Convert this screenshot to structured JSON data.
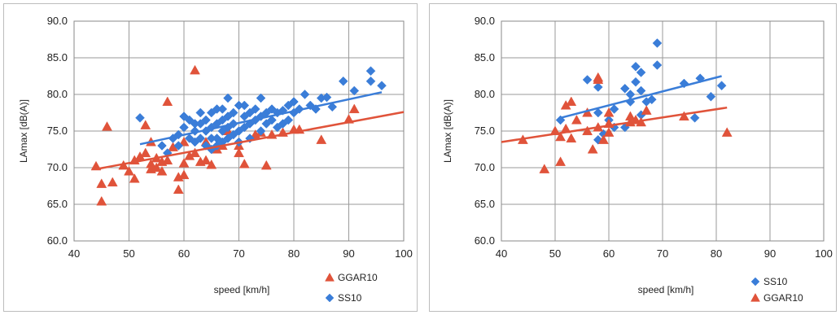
{
  "chart_data": [
    {
      "type": "scatter",
      "xlabel": "speed [km/h]",
      "ylabel": "LAmax [dB(A)]",
      "xlim": [
        40,
        100
      ],
      "ylim": [
        60,
        90
      ],
      "xticks": [
        "40",
        "50",
        "60",
        "70",
        "80",
        "90",
        "100"
      ],
      "yticks": [
        "60.0",
        "65.0",
        "70.0",
        "75.0",
        "80.0",
        "85.0",
        "90.0"
      ],
      "grid": true,
      "legend_placement": "bottom-right",
      "colors": {
        "GGAR10": "#e0533a",
        "SS10": "#3a7dd8"
      },
      "legend": [
        "GGAR10",
        "SS10"
      ],
      "series": [
        {
          "name": "GGAR10",
          "marker": "triangle",
          "color": "#e0533a",
          "trend": {
            "x": [
              44,
              100
            ],
            "y": [
              69.8,
              77.6
            ]
          },
          "points": [
            [
              44,
              70.2
            ],
            [
              45,
              65.4
            ],
            [
              45,
              67.8
            ],
            [
              46,
              75.6
            ],
            [
              47,
              68
            ],
            [
              49,
              70.3
            ],
            [
              50,
              69.5
            ],
            [
              51,
              68.5
            ],
            [
              51,
              71
            ],
            [
              52,
              71.5
            ],
            [
              53,
              75.8
            ],
            [
              53,
              72
            ],
            [
              54,
              70.5
            ],
            [
              54,
              69.8
            ],
            [
              54,
              73.5
            ],
            [
              55,
              71.3
            ],
            [
              55,
              70
            ],
            [
              56,
              69.5
            ],
            [
              56,
              70.8
            ],
            [
              57,
              79
            ],
            [
              57,
              71
            ],
            [
              58,
              72.8
            ],
            [
              59,
              68.7
            ],
            [
              59,
              67
            ],
            [
              60,
              73.5
            ],
            [
              60,
              70.6
            ],
            [
              60,
              69
            ],
            [
              61,
              71.6
            ],
            [
              62,
              83.3
            ],
            [
              62,
              72
            ],
            [
              63,
              70.8
            ],
            [
              64,
              71
            ],
            [
              64,
              73.5
            ],
            [
              65,
              70.4
            ],
            [
              66,
              72.5
            ],
            [
              67,
              73
            ],
            [
              68,
              75
            ],
            [
              70,
              73
            ],
            [
              70,
              72
            ],
            [
              71,
              70.5
            ],
            [
              73,
              74.5
            ],
            [
              74,
              74.8
            ],
            [
              75,
              70.3
            ],
            [
              76,
              74.5
            ],
            [
              78,
              74.8
            ],
            [
              80,
              75.2
            ],
            [
              81,
              75.2
            ],
            [
              85,
              73.8
            ],
            [
              90,
              76.6
            ],
            [
              91,
              78
            ]
          ]
        },
        {
          "name": "SS10",
          "marker": "diamond",
          "color": "#3a7dd8",
          "trend": {
            "x": [
              52,
              96
            ],
            "y": [
              73.2,
              80.3
            ]
          },
          "points": [
            [
              52,
              76.8
            ],
            [
              56,
              73
            ],
            [
              57,
              72
            ],
            [
              58,
              74
            ],
            [
              59,
              73
            ],
            [
              59,
              74.5
            ],
            [
              60,
              75.5
            ],
            [
              60,
              77
            ],
            [
              61,
              76.5
            ],
            [
              61,
              74
            ],
            [
              62,
              75
            ],
            [
              62,
              76
            ],
            [
              62,
              73.5
            ],
            [
              63,
              74
            ],
            [
              63,
              77.5
            ],
            [
              63,
              76
            ],
            [
              64,
              75
            ],
            [
              64,
              76.5
            ],
            [
              64,
              73
            ],
            [
              65,
              74
            ],
            [
              65,
              75.5
            ],
            [
              65,
              77.5
            ],
            [
              65,
              72.5
            ],
            [
              66,
              74
            ],
            [
              66,
              76
            ],
            [
              66,
              78
            ],
            [
              66,
              73
            ],
            [
              67,
              75
            ],
            [
              67,
              76.5
            ],
            [
              67,
              78
            ],
            [
              67,
              73.5
            ],
            [
              68,
              74
            ],
            [
              68,
              75.5
            ],
            [
              68,
              77
            ],
            [
              68,
              79.5
            ],
            [
              69,
              74.5
            ],
            [
              69,
              76
            ],
            [
              69,
              77.5
            ],
            [
              70,
              75
            ],
            [
              70,
              78.5
            ],
            [
              70,
              73.5
            ],
            [
              71,
              75.5
            ],
            [
              71,
              77
            ],
            [
              71,
              78.5
            ],
            [
              72,
              76
            ],
            [
              72,
              77.5
            ],
            [
              72,
              74
            ],
            [
              73,
              76.5
            ],
            [
              73,
              78
            ],
            [
              74,
              75
            ],
            [
              74,
              77
            ],
            [
              74,
              79.5
            ],
            [
              75,
              76
            ],
            [
              75,
              77.5
            ],
            [
              76,
              76.5
            ],
            [
              76,
              78
            ],
            [
              77,
              77.5
            ],
            [
              77,
              75.5
            ],
            [
              78,
              76
            ],
            [
              78,
              77.8
            ],
            [
              79,
              78.5
            ],
            [
              79,
              76.5
            ],
            [
              80,
              77.5
            ],
            [
              80,
              79
            ],
            [
              81,
              78
            ],
            [
              82,
              80
            ],
            [
              83,
              78.5
            ],
            [
              84,
              78
            ],
            [
              85,
              79.5
            ],
            [
              86,
              79.6
            ],
            [
              87,
              78.3
            ],
            [
              89,
              81.8
            ],
            [
              91,
              80.5
            ],
            [
              94,
              83.2
            ],
            [
              94,
              81.8
            ],
            [
              96,
              81.2
            ]
          ]
        }
      ]
    },
    {
      "type": "scatter",
      "xlabel": "speed [km/h]",
      "ylabel": "LAmax [dB(A)]",
      "xlim": [
        40,
        100
      ],
      "ylim": [
        60,
        90
      ],
      "xticks": [
        "40",
        "50",
        "60",
        "70",
        "80",
        "90",
        "100"
      ],
      "yticks": [
        "60.0",
        "65.0",
        "70.0",
        "75.0",
        "80.0",
        "85.0",
        "90.0"
      ],
      "grid": true,
      "legend_placement": "bottom-right",
      "colors": {
        "SS10": "#3a7dd8",
        "GGAR10": "#e0533a"
      },
      "legend": [
        "SS10",
        "GGAR10"
      ],
      "series": [
        {
          "name": "SS10",
          "marker": "diamond",
          "color": "#3a7dd8",
          "trend": {
            "x": [
              51,
              81
            ],
            "y": [
              76.8,
              82.5
            ]
          },
          "points": [
            [
              51,
              76.5
            ],
            [
              56,
              82
            ],
            [
              58,
              81
            ],
            [
              58,
              77.5
            ],
            [
              58,
              73.8
            ],
            [
              59,
              74.6
            ],
            [
              60,
              76.5
            ],
            [
              61,
              78
            ],
            [
              61,
              75.5
            ],
            [
              63,
              80.8
            ],
            [
              63,
              75.5
            ],
            [
              64,
              80
            ],
            [
              64,
              79
            ],
            [
              65,
              83.8
            ],
            [
              65,
              81.7
            ],
            [
              66,
              83
            ],
            [
              66,
              80.5
            ],
            [
              66,
              77.2
            ],
            [
              67,
              79
            ],
            [
              68,
              79.3
            ],
            [
              69,
              87
            ],
            [
              69,
              84
            ],
            [
              74,
              81.5
            ],
            [
              76,
              76.8
            ],
            [
              77,
              82.2
            ],
            [
              79,
              79.7
            ],
            [
              81,
              81.2
            ]
          ]
        },
        {
          "name": "GGAR10",
          "marker": "triangle",
          "color": "#e0533a",
          "trend": {
            "x": [
              40,
              82
            ],
            "y": [
              73.5,
              78.2
            ]
          },
          "points": [
            [
              44,
              73.8
            ],
            [
              48,
              69.8
            ],
            [
              50,
              75
            ],
            [
              51,
              70.8
            ],
            [
              51,
              74.2
            ],
            [
              52,
              75.3
            ],
            [
              52,
              78.5
            ],
            [
              53,
              79
            ],
            [
              53,
              74
            ],
            [
              54,
              76.5
            ],
            [
              56,
              77.5
            ],
            [
              56,
              75
            ],
            [
              57,
              72.5
            ],
            [
              58,
              82.3
            ],
            [
              58,
              82
            ],
            [
              58,
              75.5
            ],
            [
              59,
              73.8
            ],
            [
              60,
              77.5
            ],
            [
              60,
              74.8
            ],
            [
              60,
              76
            ],
            [
              64,
              77
            ],
            [
              64,
              76.2
            ],
            [
              65,
              76.5
            ],
            [
              66,
              76.2
            ],
            [
              67,
              77.8
            ],
            [
              74,
              77
            ],
            [
              82,
              74.8
            ]
          ]
        }
      ]
    }
  ]
}
